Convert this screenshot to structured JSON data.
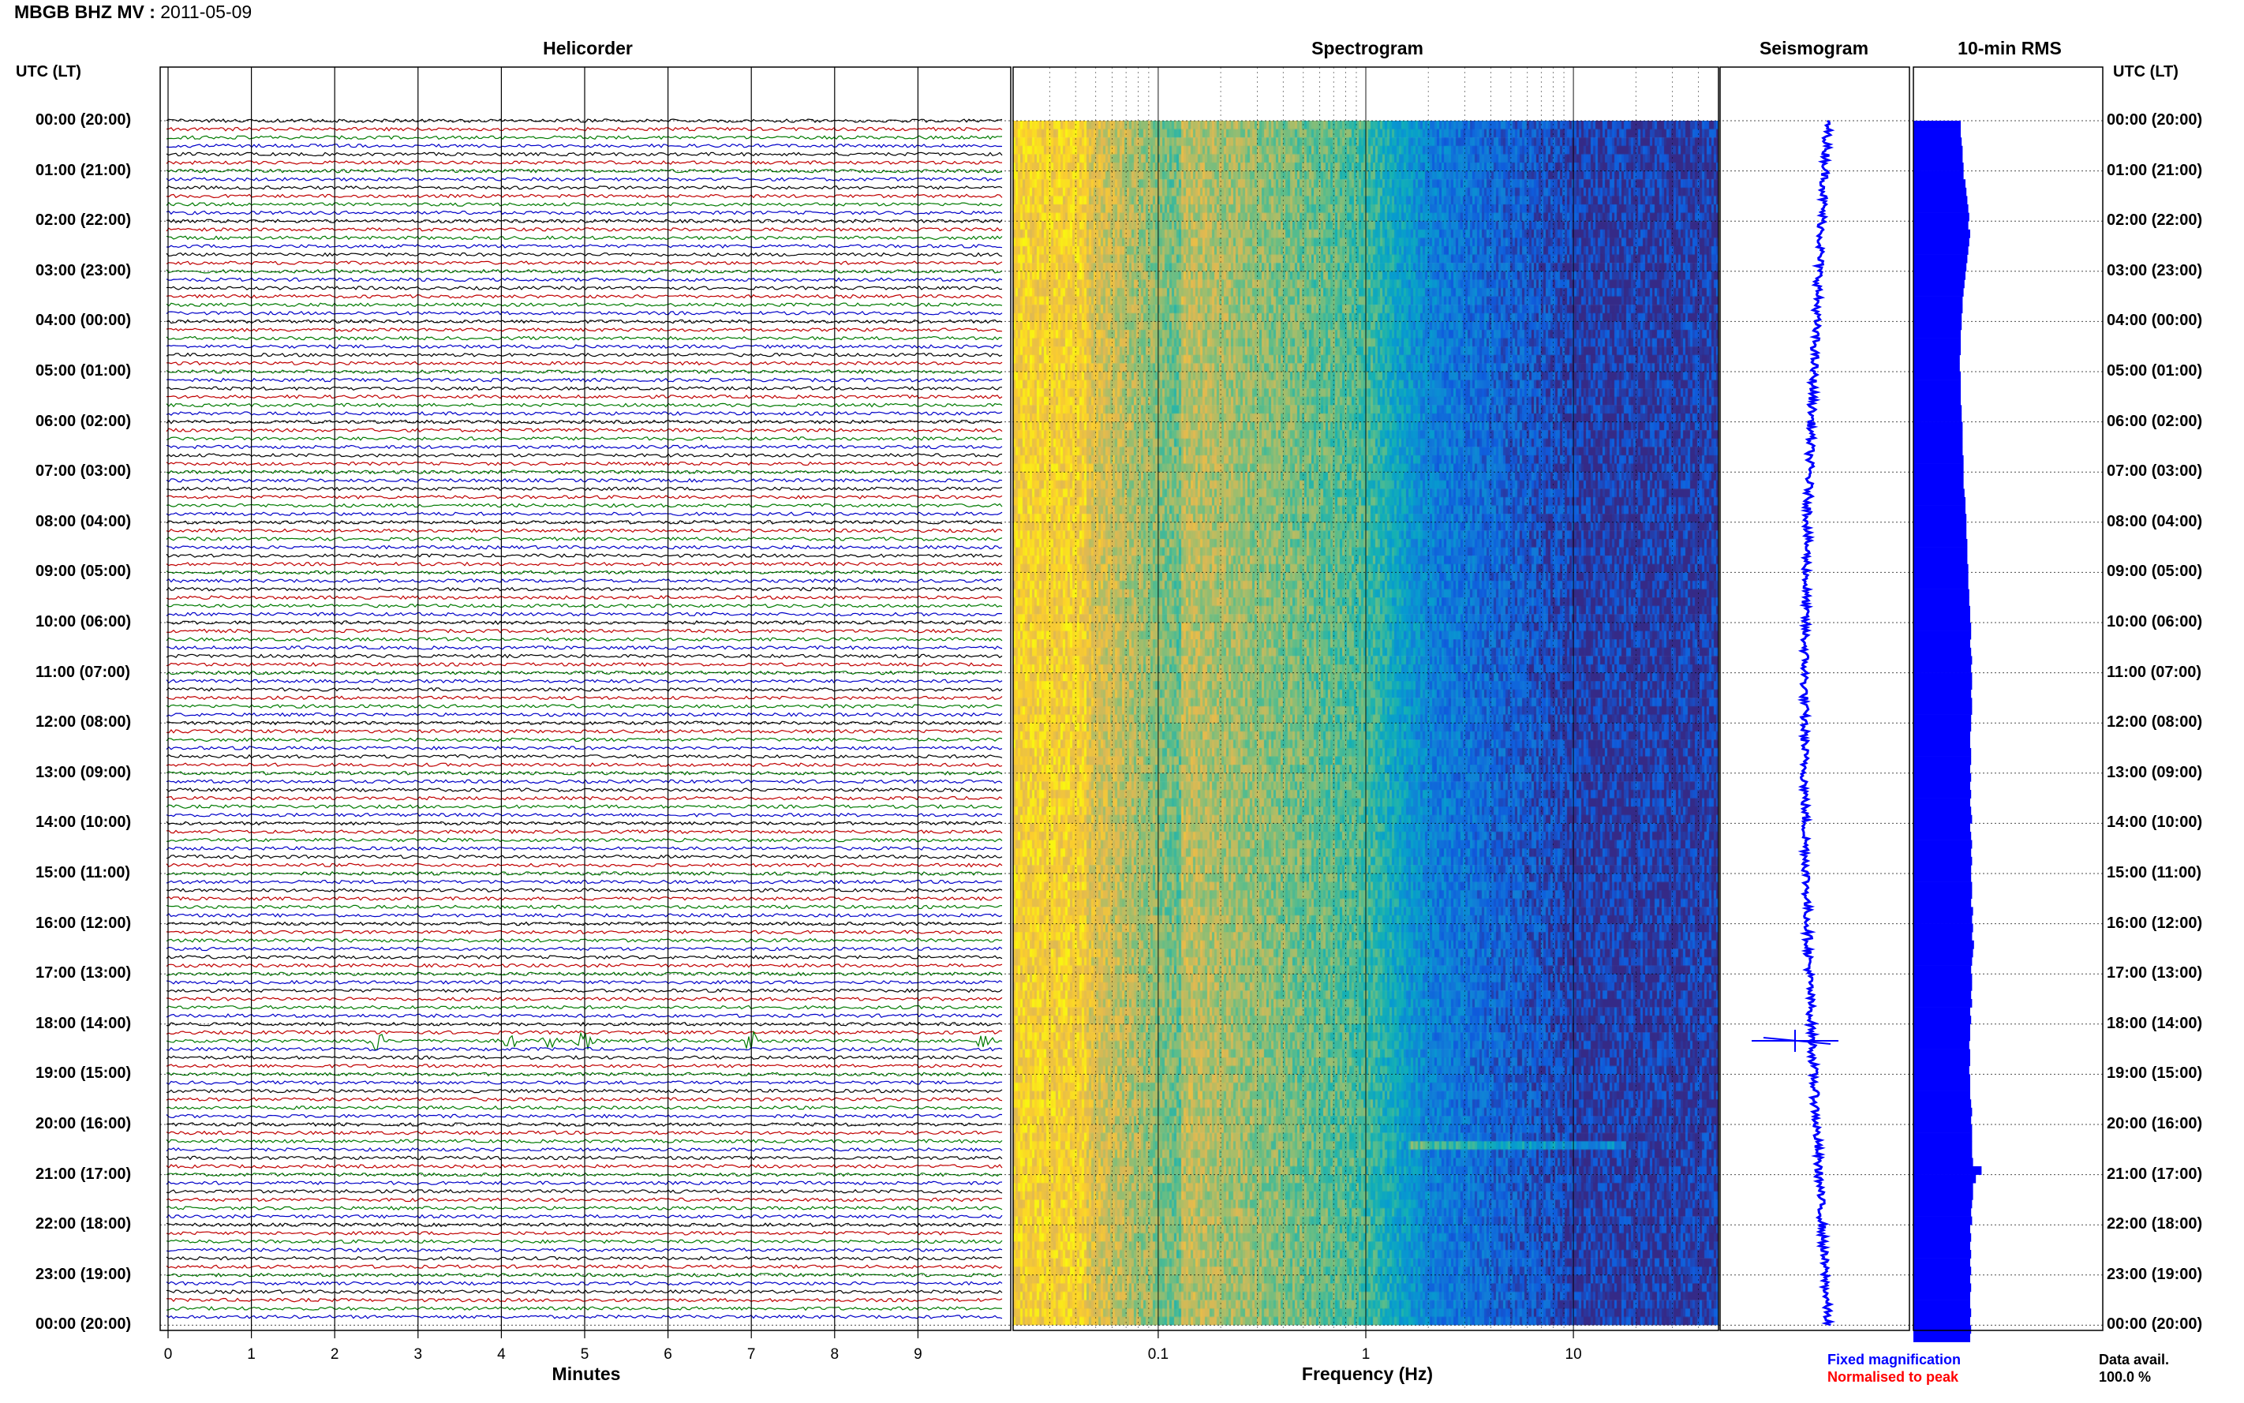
{
  "header": {
    "station": "MBGB BHZ MV :",
    "date": "2011-05-09"
  },
  "panels": {
    "helicorder_title": "Helicorder",
    "spectrogram_title": "Spectrogram",
    "seismogram_title": "Seismogram",
    "rms_title": "10-min RMS",
    "time_axis_label": "UTC (LT)"
  },
  "legend": {
    "fixed": "Fixed magnification",
    "normalised": "Normalised to peak",
    "avail_label": "Data avail.",
    "avail_value": "100.0 %"
  },
  "colors": {
    "trace_cycle": [
      "#000000",
      "#c00000",
      "#007a00",
      "#0000c8"
    ],
    "seismogram": "#0000ff",
    "rms": "#0000ff",
    "legend_fixed": "#0000ff",
    "legend_normalised": "#ff0000"
  },
  "chart_data": [
    {
      "type": "line",
      "panel": "Helicorder",
      "xlabel": "Minutes",
      "x_ticks": [
        "0",
        "1",
        "2",
        "3",
        "4",
        "5",
        "6",
        "7",
        "8",
        "9"
      ],
      "xlim": [
        0,
        10
      ],
      "rows_per_hour": 6,
      "time_labels": [
        "00:00 (20:00)",
        "01:00 (21:00)",
        "02:00 (22:00)",
        "03:00 (23:00)",
        "04:00 (00:00)",
        "05:00 (01:00)",
        "06:00 (02:00)",
        "07:00 (03:00)",
        "08:00 (04:00)",
        "09:00 (05:00)",
        "10:00 (06:00)",
        "11:00 (07:00)",
        "12:00 (08:00)",
        "13:00 (09:00)",
        "14:00 (10:00)",
        "15:00 (11:00)",
        "16:00 (12:00)",
        "17:00 (13:00)",
        "18:00 (14:00)",
        "19:00 (15:00)",
        "20:00 (16:00)",
        "21:00 (17:00)",
        "22:00 (18:00)",
        "23:00 (19:00)",
        "00:00 (20:00)"
      ],
      "events": [
        {
          "time": "18:20",
          "minutes": [
            2.5,
            4.1,
            4.6,
            5.0,
            7.0,
            9.8
          ]
        }
      ]
    },
    {
      "type": "heatmap",
      "panel": "Spectrogram",
      "xlabel": "Frequency (Hz)",
      "x_scale": "log",
      "x_ticks": [
        "0.1",
        "1",
        "10"
      ],
      "xlim": [
        0.02,
        50
      ],
      "colormap": "parula"
    },
    {
      "type": "line",
      "panel": "Seismogram",
      "note": "24 h compressed trace, spike at 18:20"
    },
    {
      "type": "bar",
      "panel": "10-min RMS",
      "orientation": "horizontal",
      "values": [
        0.5,
        0.5,
        0.51,
        0.52,
        0.52,
        0.53,
        0.53,
        0.55,
        0.56,
        0.57,
        0.58,
        0.59,
        0.58,
        0.6,
        0.59,
        0.58,
        0.57,
        0.56,
        0.55,
        0.54,
        0.53,
        0.52,
        0.52,
        0.51,
        0.51,
        0.5,
        0.5,
        0.5,
        0.49,
        0.49,
        0.5,
        0.5,
        0.5,
        0.5,
        0.51,
        0.51,
        0.52,
        0.52,
        0.52,
        0.52,
        0.53,
        0.53,
        0.53,
        0.53,
        0.54,
        0.55,
        0.55,
        0.56,
        0.56,
        0.56,
        0.57,
        0.57,
        0.57,
        0.58,
        0.58,
        0.58,
        0.59,
        0.59,
        0.6,
        0.6,
        0.61,
        0.61,
        0.6,
        0.61,
        0.62,
        0.61,
        0.62,
        0.62,
        0.61,
        0.62,
        0.62,
        0.61,
        0.61,
        0.6,
        0.6,
        0.61,
        0.61,
        0.6,
        0.61,
        0.6,
        0.61,
        0.6,
        0.61,
        0.62,
        0.6,
        0.61,
        0.62,
        0.61,
        0.62,
        0.61,
        0.61,
        0.62,
        0.62,
        0.61,
        0.63,
        0.62,
        0.63,
        0.62,
        0.64,
        0.63,
        0.62,
        0.61,
        0.62,
        0.62,
        0.61,
        0.62,
        0.6,
        0.61,
        0.6,
        0.6,
        0.59,
        0.6,
        0.6,
        0.59,
        0.6,
        0.6,
        0.6,
        0.61,
        0.62,
        0.61,
        0.62,
        0.62,
        0.62,
        0.62,
        0.63,
        0.72,
        0.66,
        0.63,
        0.63,
        0.62,
        0.61,
        0.62,
        0.6,
        0.61,
        0.6,
        0.61,
        0.6,
        0.61,
        0.6,
        0.61,
        0.6,
        0.6,
        0.61,
        0.6,
        0.61,
        0.6
      ]
    }
  ]
}
